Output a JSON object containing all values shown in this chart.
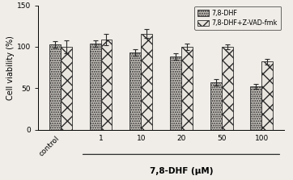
{
  "categories": [
    "control",
    "1",
    "10",
    "20",
    "50",
    "100"
  ],
  "dhf_values": [
    103,
    104,
    93,
    88,
    57,
    52
  ],
  "zvad_values": [
    100,
    109,
    116,
    100,
    100,
    82
  ],
  "dhf_errors": [
    4,
    4,
    4,
    4,
    4,
    3
  ],
  "zvad_errors": [
    8,
    7,
    5,
    4,
    3,
    3
  ],
  "ylabel": "Cell viability (%)",
  "xlabel": "7,8-DHF (μM)",
  "legend_dhf": "7,8-DHF",
  "legend_zvad": "7,8-DHF+Z-VAD-fmk",
  "ylim": [
    0,
    150
  ],
  "yticks": [
    0,
    50,
    100,
    150
  ],
  "bar_width": 0.28,
  "background_color": "#f0ede8",
  "axis_fontsize": 7,
  "tick_fontsize": 6.5
}
